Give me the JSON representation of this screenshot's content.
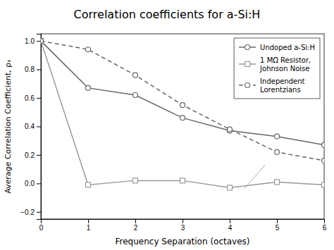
{
  "chart_data": {
    "type": "line",
    "title": "Correlation coefficients for a-Si:H",
    "x_label": "Frequency Separation (octaves)",
    "y_label": "Average Correlation Coefficient, ρₓ",
    "x": [
      0,
      1,
      2,
      3,
      4,
      5,
      6
    ],
    "xlim": [
      0,
      6
    ],
    "ylim": [
      -0.25,
      1.05
    ],
    "xticks": [
      0,
      1,
      2,
      3,
      4,
      5,
      6
    ],
    "yticks": [
      {
        "value": -0.2,
        "label": "−0.2"
      },
      {
        "value": 0,
        "label": "0.0"
      },
      0.2,
      0.4,
      0.6,
      0.8,
      {
        "value": 1,
        "label": "1.0"
      }
    ],
    "grid": false,
    "legend": "upper-right",
    "series": [
      {
        "name": "Undoped a-Si:H",
        "color": "#666666",
        "marker": "circle",
        "line_style": "solid",
        "values": [
          1.0,
          0.67,
          0.62,
          0.46,
          0.37,
          0.33,
          0.27
        ]
      },
      {
        "name": "1 MΩ Resistor,\nJohnson Noise",
        "color": "#999999",
        "marker": "square",
        "line_style": "solid",
        "values": [
          1.0,
          -0.01,
          0.02,
          0.02,
          -0.03,
          0.01,
          -0.01
        ]
      },
      {
        "name": "Independent\nLorentzians",
        "color": "#666666",
        "marker": "circle",
        "line_style": "dashed",
        "values": [
          1.0,
          0.94,
          0.76,
          0.55,
          0.38,
          0.22,
          0.16
        ]
      }
    ],
    "annotation_lines": [
      {
        "x": [
          4.3,
          4.75
        ],
        "y": [
          -0.04,
          0.13
        ],
        "color": "#aaaaaa"
      }
    ]
  }
}
